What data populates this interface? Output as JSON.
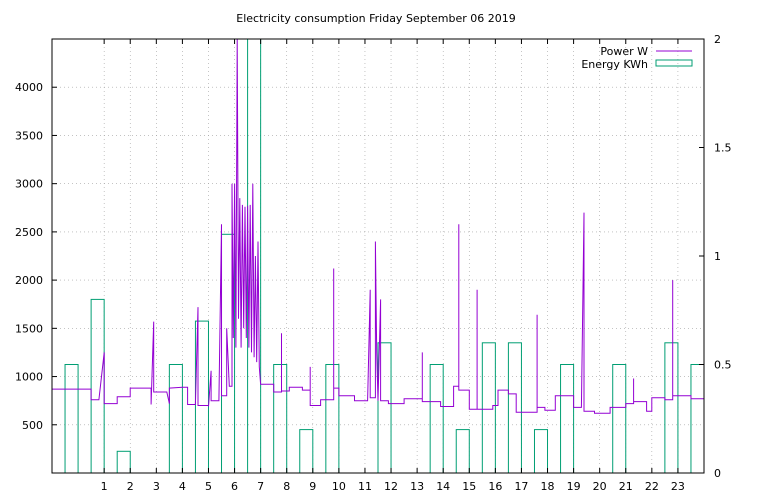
{
  "chart_data": {
    "type": "line",
    "title": "Electricity consumption Friday September 06 2019",
    "xlabel": "",
    "ylabel": "",
    "xlim": [
      -1,
      24
    ],
    "ylim": [
      0,
      4500
    ],
    "y2lim": [
      0,
      2
    ],
    "x_ticks": [
      "1",
      "2",
      "3",
      "4",
      "5",
      "6",
      "7",
      "8",
      "9",
      "10",
      "11",
      "12",
      "13",
      "14",
      "15",
      "16",
      "17",
      "18",
      "19",
      "20",
      "21",
      "22",
      "23"
    ],
    "y_ticks": [
      "500",
      "1000",
      "1500",
      "2000",
      "2500",
      "3000",
      "3500",
      "4000"
    ],
    "y2_ticks": [
      "0",
      "0.5",
      "1",
      "1.5",
      "2"
    ],
    "grid": true,
    "legend_position": "top-right",
    "colors": {
      "power": "#9400d3",
      "energy": "#009e73"
    },
    "series": [
      {
        "name": "Power W",
        "axis": "left",
        "style": "line",
        "points": [
          [
            -1.0,
            870
          ],
          [
            0.0,
            870
          ],
          [
            0.5,
            870
          ],
          [
            0.5,
            760
          ],
          [
            0.8,
            760
          ],
          [
            1.0,
            1250
          ],
          [
            1.0,
            720
          ],
          [
            1.5,
            720
          ],
          [
            1.5,
            790
          ],
          [
            2.0,
            790
          ],
          [
            2.0,
            880
          ],
          [
            2.8,
            880
          ],
          [
            2.8,
            710
          ],
          [
            2.9,
            1570
          ],
          [
            2.9,
            840
          ],
          [
            3.4,
            840
          ],
          [
            3.5,
            720
          ],
          [
            3.5,
            880
          ],
          [
            4.0,
            890
          ],
          [
            4.2,
            890
          ],
          [
            4.2,
            710
          ],
          [
            4.5,
            710
          ],
          [
            4.6,
            1720
          ],
          [
            4.6,
            700
          ],
          [
            5.0,
            700
          ],
          [
            5.0,
            690
          ],
          [
            5.1,
            1060
          ],
          [
            5.1,
            750
          ],
          [
            5.4,
            750
          ],
          [
            5.5,
            2580
          ],
          [
            5.5,
            800
          ],
          [
            5.7,
            800
          ],
          [
            5.7,
            1500
          ],
          [
            5.8,
            900
          ],
          [
            5.9,
            900
          ],
          [
            5.9,
            3000
          ],
          [
            5.95,
            1400
          ],
          [
            6.0,
            3000
          ],
          [
            6.05,
            1300
          ],
          [
            6.1,
            4500
          ],
          [
            6.15,
            1600
          ],
          [
            6.2,
            2850
          ],
          [
            6.25,
            1300
          ],
          [
            6.3,
            2780
          ],
          [
            6.35,
            1500
          ],
          [
            6.4,
            2760
          ],
          [
            6.45,
            1400
          ],
          [
            6.5,
            2770
          ],
          [
            6.55,
            1300
          ],
          [
            6.6,
            2780
          ],
          [
            6.65,
            1250
          ],
          [
            6.7,
            3000
          ],
          [
            6.75,
            1200
          ],
          [
            6.8,
            2250
          ],
          [
            6.85,
            1150
          ],
          [
            6.9,
            2400
          ],
          [
            6.95,
            1100
          ],
          [
            7.0,
            920
          ],
          [
            7.5,
            920
          ],
          [
            7.5,
            840
          ],
          [
            7.8,
            840
          ],
          [
            7.8,
            1450
          ],
          [
            7.8,
            850
          ],
          [
            8.1,
            850
          ],
          [
            8.1,
            890
          ],
          [
            8.6,
            890
          ],
          [
            8.6,
            860
          ],
          [
            8.9,
            860
          ],
          [
            8.9,
            1100
          ],
          [
            8.9,
            700
          ],
          [
            9.3,
            700
          ],
          [
            9.3,
            760
          ],
          [
            9.8,
            760
          ],
          [
            9.8,
            2120
          ],
          [
            9.8,
            880
          ],
          [
            10.0,
            880
          ],
          [
            10.0,
            800
          ],
          [
            10.6,
            800
          ],
          [
            10.6,
            750
          ],
          [
            11.1,
            750
          ],
          [
            11.2,
            1900
          ],
          [
            11.2,
            780
          ],
          [
            11.4,
            780
          ],
          [
            11.4,
            2400
          ],
          [
            11.45,
            1250
          ],
          [
            11.5,
            750
          ],
          [
            11.6,
            1800
          ],
          [
            11.6,
            750
          ],
          [
            11.9,
            750
          ],
          [
            11.9,
            720
          ],
          [
            12.5,
            720
          ],
          [
            12.5,
            770
          ],
          [
            13.2,
            770
          ],
          [
            13.2,
            1250
          ],
          [
            13.2,
            740
          ],
          [
            13.9,
            740
          ],
          [
            13.9,
            690
          ],
          [
            14.4,
            690
          ],
          [
            14.4,
            900
          ],
          [
            14.6,
            900
          ],
          [
            14.6,
            2580
          ],
          [
            14.6,
            860
          ],
          [
            15.0,
            860
          ],
          [
            15.0,
            660
          ],
          [
            15.3,
            660
          ],
          [
            15.3,
            1900
          ],
          [
            15.3,
            660
          ],
          [
            15.9,
            660
          ],
          [
            15.9,
            700
          ],
          [
            16.1,
            700
          ],
          [
            16.1,
            860
          ],
          [
            16.5,
            860
          ],
          [
            16.5,
            820
          ],
          [
            16.8,
            820
          ],
          [
            16.8,
            630
          ],
          [
            17.6,
            630
          ],
          [
            17.6,
            1640
          ],
          [
            17.6,
            680
          ],
          [
            17.9,
            680
          ],
          [
            17.9,
            650
          ],
          [
            18.3,
            650
          ],
          [
            18.3,
            800
          ],
          [
            19.0,
            800
          ],
          [
            19.0,
            680
          ],
          [
            19.3,
            680
          ],
          [
            19.4,
            2700
          ],
          [
            19.4,
            640
          ],
          [
            19.8,
            640
          ],
          [
            19.8,
            620
          ],
          [
            20.4,
            620
          ],
          [
            20.4,
            680
          ],
          [
            21.0,
            680
          ],
          [
            21.0,
            720
          ],
          [
            21.3,
            720
          ],
          [
            21.3,
            980
          ],
          [
            21.3,
            740
          ],
          [
            21.8,
            740
          ],
          [
            21.8,
            640
          ],
          [
            22.0,
            640
          ],
          [
            22.0,
            780
          ],
          [
            22.5,
            780
          ],
          [
            22.5,
            760
          ],
          [
            22.8,
            760
          ],
          [
            22.8,
            2000
          ],
          [
            22.8,
            800
          ],
          [
            23.5,
            800
          ],
          [
            23.5,
            770
          ],
          [
            24.0,
            770
          ]
        ]
      },
      {
        "name": "Energy KWh",
        "axis": "right",
        "style": "steps",
        "points": [
          [
            -1,
            0.5
          ],
          [
            0,
            0.8
          ],
          [
            1,
            0.1
          ],
          [
            2,
            0.0
          ],
          [
            3,
            0.5
          ],
          [
            4,
            0.7
          ],
          [
            5,
            1.1
          ],
          [
            6,
            2.0
          ],
          [
            7,
            0.5
          ],
          [
            8,
            0.2
          ],
          [
            9,
            0.5
          ],
          [
            10,
            0.0
          ],
          [
            11,
            0.6
          ],
          [
            12,
            0.0
          ],
          [
            13,
            0.5
          ],
          [
            14,
            0.2
          ],
          [
            15,
            0.6
          ],
          [
            16,
            0.6
          ],
          [
            17,
            0.2
          ],
          [
            18,
            0.5
          ],
          [
            19,
            0.0
          ],
          [
            20,
            0.5
          ],
          [
            21,
            0.0
          ],
          [
            22,
            0.6
          ],
          [
            23,
            0.5
          ]
        ]
      }
    ]
  }
}
